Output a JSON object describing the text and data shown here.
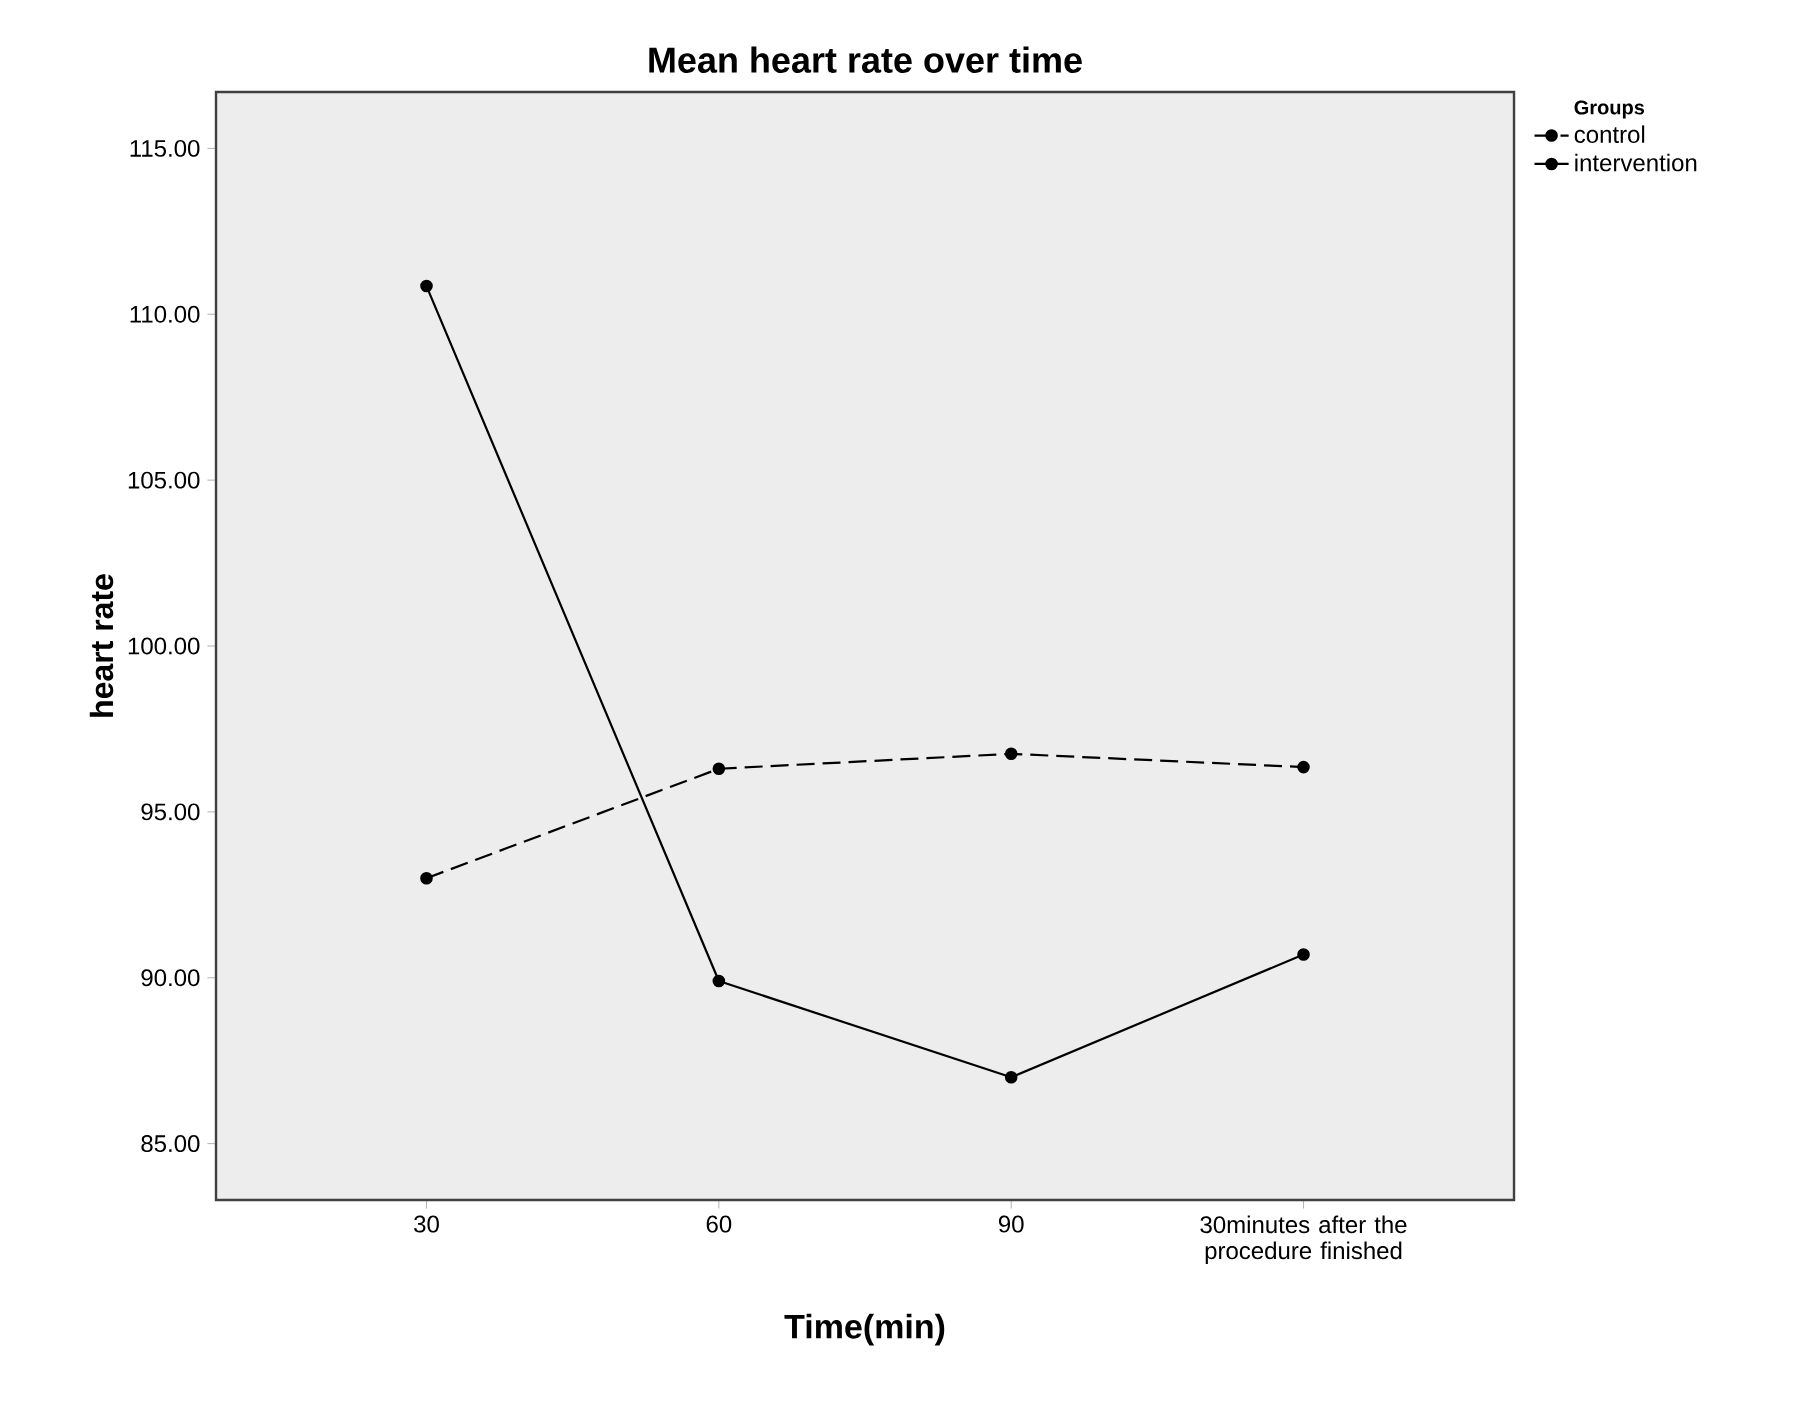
{
  "chart_data": {
    "type": "line",
    "title": "Mean heart rate over time",
    "xlabel": "Time(min)",
    "ylabel": "heart rate",
    "legend_title": "Groups",
    "categories": [
      "30",
      "60",
      "90",
      "30minutes after the procedure finished"
    ],
    "series": [
      {
        "name": "control",
        "color": "#000000",
        "line_style": "dashed",
        "values": [
          93.0,
          96.3,
          96.75,
          96.35
        ]
      },
      {
        "name": "intervention",
        "color": "#000000",
        "line_style": "solid",
        "values": [
          110.85,
          89.9,
          87.0,
          90.7
        ]
      }
    ],
    "ylim": [
      83.3,
      116.7
    ],
    "yticks": [
      {
        "value": 85,
        "label": "85.00"
      },
      {
        "value": 90,
        "label": "90.00"
      },
      {
        "value": 95,
        "label": "95.00"
      },
      {
        "value": 100,
        "label": "100.00"
      },
      {
        "value": 105,
        "label": "105.00"
      },
      {
        "value": 110,
        "label": "110.00"
      },
      {
        "value": 115,
        "label": "115.00"
      }
    ],
    "marker": "circle",
    "legend": "top right",
    "grid": false
  }
}
